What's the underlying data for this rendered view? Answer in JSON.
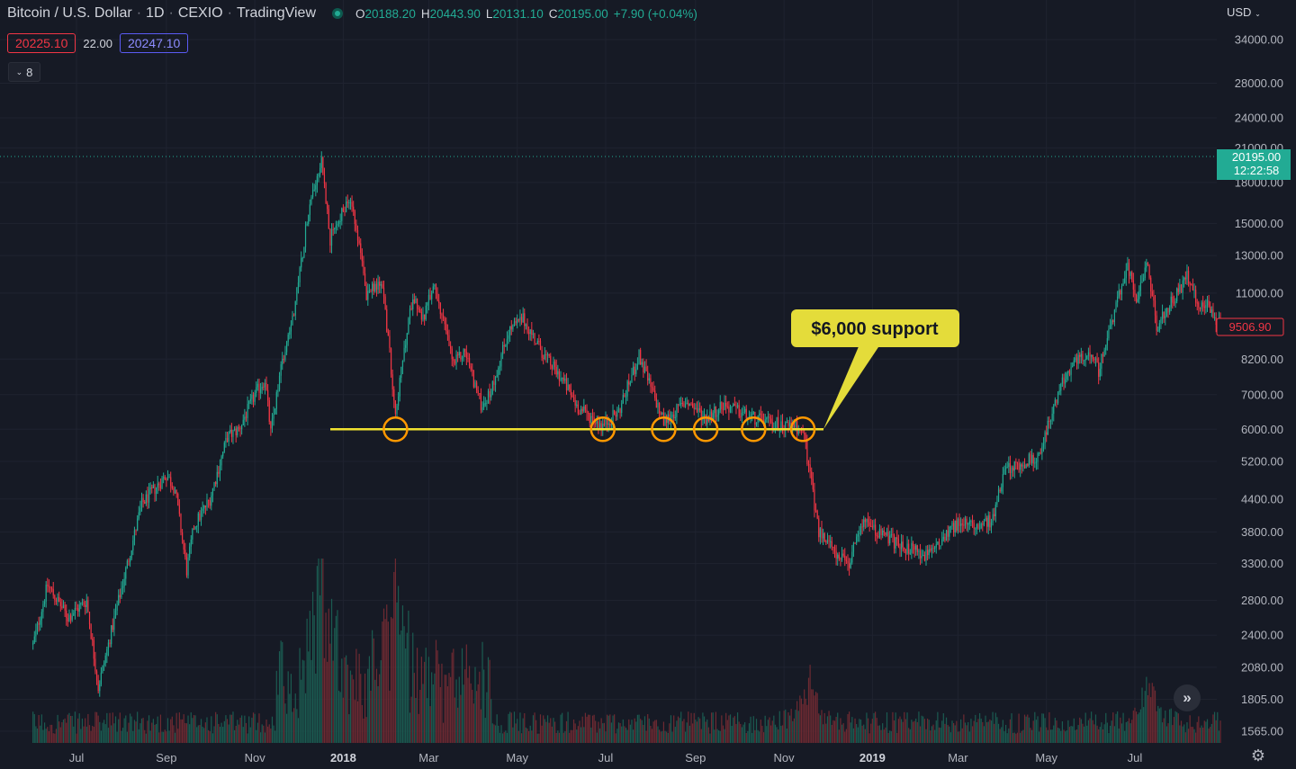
{
  "header": {
    "symbol": "Bitcoin / U.S. Dollar",
    "interval": "1D",
    "exchange": "CEXIO",
    "source": "TradingView",
    "ohlc": {
      "open_key": "O",
      "open": "20188.20",
      "high_key": "H",
      "high": "20443.90",
      "low_key": "L",
      "low": "20131.10",
      "close_key": "C",
      "close": "20195.00",
      "change": "+7.90 (+0.04%)"
    },
    "bid": "20225.10",
    "spread": "22.00",
    "ask": "20247.10",
    "indicators_count": "8",
    "currency": "USD"
  },
  "price_scale": {
    "current_price": "20195.00",
    "countdown": "12:22:58",
    "marker_price": "9506.90"
  },
  "annotation": {
    "text": "$6,000 support",
    "support_level": 6000
  },
  "colors": {
    "background": "#161a25",
    "up": "#22ab94",
    "down": "#f23645",
    "support_line": "#f0e130",
    "touch_circle": "#ff9800",
    "callout": "#e4dc3a"
  },
  "chart_data": {
    "type": "candlestick",
    "x_labels": [
      "Jul",
      "Sep",
      "Nov",
      "2018",
      "Mar",
      "May",
      "Jul",
      "Sep",
      "Nov",
      "2019",
      "Mar",
      "May",
      "Jul"
    ],
    "y_ticks": [
      "34000.00",
      "28000.00",
      "24000.00",
      "21000.00",
      "18000.00",
      "15000.00",
      "13000.00",
      "11000.00",
      "8200.00",
      "7000.00",
      "6000.00",
      "5200.00",
      "4400.00",
      "3800.00",
      "3300.00",
      "2800.00",
      "2400.00",
      "2080.00",
      "1805.00",
      "1565.00"
    ],
    "y_scale": "log",
    "support_touches": [
      "2018-02-06",
      "2018-06-29",
      "2018-08-10",
      "2018-09-08",
      "2018-10-11",
      "2018-11-14"
    ],
    "price_path": [
      [
        "2017-06-01",
        2300
      ],
      [
        "2017-06-11",
        3000
      ],
      [
        "2017-06-25",
        2600
      ],
      [
        "2017-07-08",
        2800
      ],
      [
        "2017-07-16",
        1900
      ],
      [
        "2017-07-30",
        2800
      ],
      [
        "2017-08-15",
        4300
      ],
      [
        "2017-09-01",
        4900
      ],
      [
        "2017-09-07",
        4600
      ],
      [
        "2017-09-15",
        3200
      ],
      [
        "2017-09-20",
        3900
      ],
      [
        "2017-10-01",
        4400
      ],
      [
        "2017-10-13",
        5800
      ],
      [
        "2017-10-21",
        6000
      ],
      [
        "2017-11-01",
        7000
      ],
      [
        "2017-11-08",
        7500
      ],
      [
        "2017-11-12",
        5900
      ],
      [
        "2017-11-20",
        8200
      ],
      [
        "2017-11-29",
        10500
      ],
      [
        "2017-12-08",
        16000
      ],
      [
        "2017-12-17",
        20000
      ],
      [
        "2017-12-23",
        14000
      ],
      [
        "2018-01-06",
        17000
      ],
      [
        "2018-01-17",
        11000
      ],
      [
        "2018-01-28",
        11500
      ],
      [
        "2018-02-06",
        6500
      ],
      [
        "2018-02-18",
        11000
      ],
      [
        "2018-02-25",
        9800
      ],
      [
        "2018-03-05",
        11500
      ],
      [
        "2018-03-18",
        8000
      ],
      [
        "2018-03-26",
        8500
      ],
      [
        "2018-04-06",
        6700
      ],
      [
        "2018-04-12",
        7000
      ],
      [
        "2018-04-25",
        9300
      ],
      [
        "2018-05-05",
        9800
      ],
      [
        "2018-05-20",
        8300
      ],
      [
        "2018-06-01",
        7500
      ],
      [
        "2018-06-12",
        6600
      ],
      [
        "2018-06-29",
        6100
      ],
      [
        "2018-07-10",
        6500
      ],
      [
        "2018-07-24",
        8300
      ],
      [
        "2018-08-10",
        6200
      ],
      [
        "2018-08-26",
        6800
      ],
      [
        "2018-09-08",
        6300
      ],
      [
        "2018-09-20",
        6700
      ],
      [
        "2018-10-11",
        6300
      ],
      [
        "2018-11-14",
        6000
      ],
      [
        "2018-11-25",
        3800
      ],
      [
        "2018-12-15",
        3250
      ],
      [
        "2018-12-25",
        4000
      ],
      [
        "2019-01-15",
        3650
      ],
      [
        "2019-02-08",
        3400
      ],
      [
        "2019-02-24",
        3900
      ],
      [
        "2019-03-25",
        4000
      ],
      [
        "2019-04-02",
        5000
      ],
      [
        "2019-04-25",
        5300
      ],
      [
        "2019-05-15",
        7800
      ],
      [
        "2019-06-01",
        8500
      ],
      [
        "2019-06-06",
        7800
      ],
      [
        "2019-06-26",
        12500
      ],
      [
        "2019-07-02",
        10500
      ],
      [
        "2019-07-10",
        12500
      ],
      [
        "2019-07-16",
        9500
      ],
      [
        "2019-08-06",
        11800
      ],
      [
        "2019-08-15",
        10200
      ],
      [
        "2019-08-20",
        10500
      ],
      [
        "2019-08-29",
        9500
      ]
    ],
    "volume_spikes": [
      [
        "2017-12-17",
        1.0
      ],
      [
        "2018-02-06",
        0.85
      ],
      [
        "2018-11-19",
        0.3
      ],
      [
        "2019-07-10",
        0.3
      ]
    ]
  }
}
